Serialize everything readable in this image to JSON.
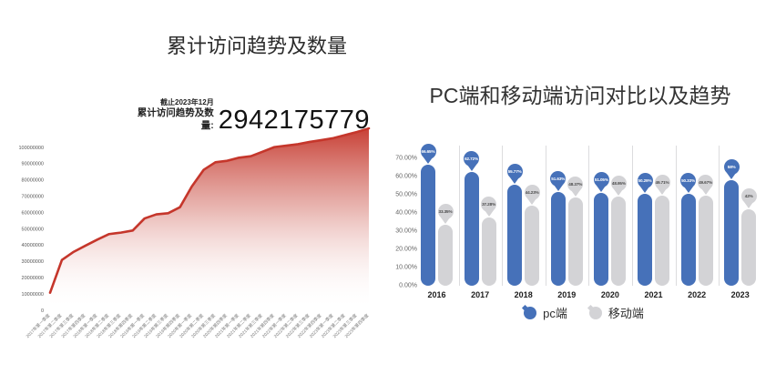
{
  "page": {
    "background": "#ffffff"
  },
  "chart_data": [
    {
      "type": "area",
      "title": "累计访问趋势及数量",
      "annotation": {
        "asof": "截止2023年12月",
        "label": "累计访问趋势及数量:",
        "value": "2942175779"
      },
      "x": [
        "2017年第一季度",
        "2017年第二季度",
        "2017年第三季度",
        "2017年第四季度",
        "2018年第一季度",
        "2018年第二季度",
        "2018年第三季度",
        "2018年第四季度",
        "2019年第一季度",
        "2019年第二季度",
        "2019年第三季度",
        "2019年第四季度",
        "2020年第一季度",
        "2020年第二季度",
        "2020年第三季度",
        "2020年第四季度",
        "2021年第一季度",
        "2021年第二季度",
        "2021年第三季度",
        "2021年第四季度",
        "2022年第一季度",
        "2022年第二季度",
        "2022年第三季度",
        "2022年第四季度",
        "2023年第一季度",
        "2023年第二季度",
        "2023年第三季度",
        "2023年第四季度"
      ],
      "values": [
        10800000,
        30900000,
        35900000,
        39700000,
        43400000,
        46800000,
        47700000,
        49000000,
        56400000,
        58900000,
        59600000,
        63300000,
        76000000,
        86200000,
        90900000,
        91800000,
        93700000,
        94600000,
        97400000,
        100200000,
        101100000,
        102000000,
        103400000,
        104500000,
        105700000,
        107600000,
        109500000,
        111700000
      ],
      "ylim": [
        0,
        112000000
      ],
      "yticks": [
        0,
        10000000,
        20000000,
        30000000,
        40000000,
        50000000,
        60000000,
        70000000,
        80000000,
        90000000,
        100000000
      ],
      "ytick_labels": [
        "0",
        "10000000",
        "20000000",
        "30000000",
        "40000000",
        "50000000",
        "60000000",
        "70000000",
        "80000000",
        "90000000",
        "100000000"
      ],
      "line_color": "#c5362b",
      "fill_gradient_top": "#c5362b",
      "fill_gradient_bottom": "#ffffff",
      "grid": false,
      "legend_position": "none"
    },
    {
      "type": "bar",
      "title": "PC端和移动端访问对比以及趋势",
      "categories": [
        "2016",
        "2017",
        "2018",
        "2019",
        "2020",
        "2021",
        "2022",
        "2023"
      ],
      "series": [
        {
          "name": "pc端",
          "color": "#4671b9",
          "label_text_color": "#ffffff",
          "values": [
            66.65,
            62.72,
            55.77,
            51.63,
            51.05,
            50.29,
            50.33,
            58
          ],
          "labels": [
            "66.65%",
            "62.72%",
            "55.77%",
            "51.63%",
            "51.05%",
            "50.29%",
            "50.33%",
            "58%"
          ]
        },
        {
          "name": "移动端",
          "color": "#d3d3d6",
          "label_text_color": "#4a4a4a",
          "values": [
            33.35,
            37.28,
            44.23,
            48.37,
            48.95,
            49.71,
            49.67,
            42
          ],
          "labels": [
            "33.35%",
            "37.28%",
            "44.23%",
            "48.37%",
            "48.95%",
            "49.71%",
            "49.67%",
            "42%"
          ]
        }
      ],
      "ylim": [
        0,
        70
      ],
      "ytick_labels": [
        "0.00%",
        "10.00%",
        "20.00%",
        "30.00%",
        "40.00%",
        "50.00%",
        "60.00%",
        "70.00%"
      ],
      "grid": false,
      "separator_color": "#dcdcde",
      "legend_position": "bottom"
    }
  ]
}
